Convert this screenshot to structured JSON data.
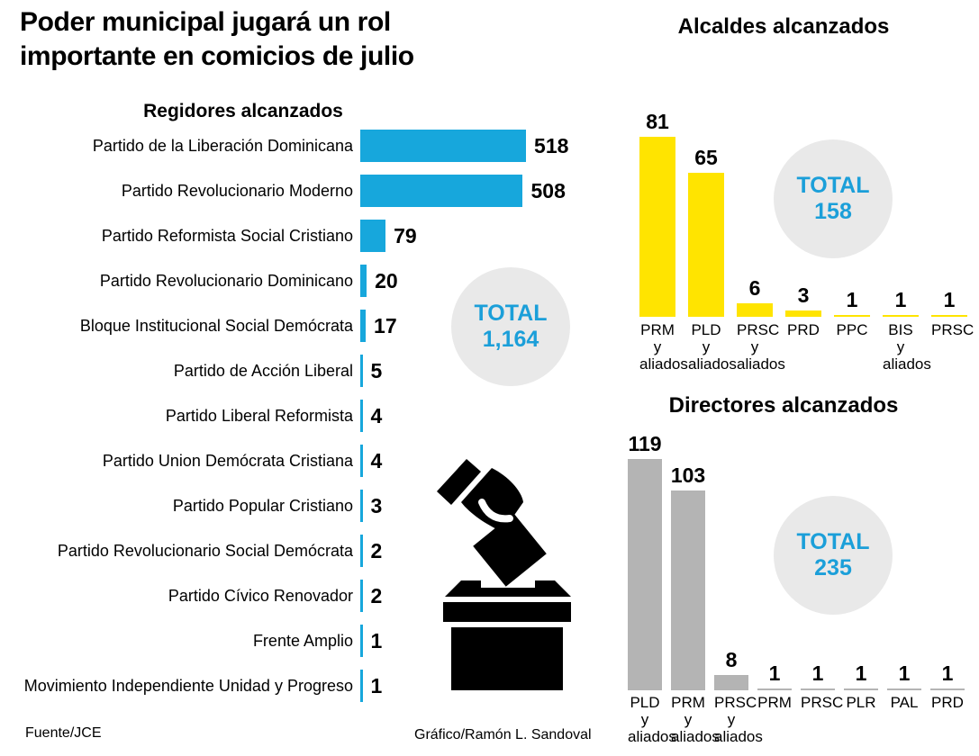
{
  "meta": {
    "title": "Poder municipal jugará un rol\nimportante en comicios de julio",
    "source": "Fuente/JCE",
    "credit": "Gráfico/Ramón L. Sandoval"
  },
  "colors": {
    "cyan_bar": "#17A7DC",
    "cyan_text": "#1B9FD9",
    "yellow_bar": "#FFE400",
    "gray_bar": "#B4B4B4",
    "circle_bg": "#E9E9E9",
    "text": "#000000",
    "background": "#FFFFFF"
  },
  "icons": {
    "ballot_box": "ballot-box-icon"
  },
  "chart_data": [
    {
      "id": "regidores",
      "type": "bar",
      "orientation": "horizontal",
      "title": "Regidores alcanzados",
      "bar_color": "#17A7DC",
      "grid": false,
      "legend": "none",
      "value_labels": "end-of-bar",
      "xlim": [
        0,
        560
      ],
      "total_label": "TOTAL",
      "total_value": "1,164",
      "categories": [
        "Partido de la Liberación Dominicana",
        "Partido Revolucionario Moderno",
        "Partido Reformista Social Cristiano",
        "Partido Revolucionario Dominicano",
        "Bloque Institucional Social Demócrata",
        "Partido de Acción Liberal",
        "Partido Liberal Reformista",
        "Partido Union Demócrata Cristiana",
        "Partido Popular Cristiano",
        "Partido Revolucionario Social Demócrata",
        "Partido Cívico Renovador",
        "Frente Amplio",
        "Movimiento Independiente Unidad y Progreso"
      ],
      "values": [
        518,
        508,
        79,
        20,
        17,
        5,
        4,
        4,
        3,
        2,
        2,
        1,
        1
      ],
      "value_labels_text": [
        "518",
        "508",
        "79",
        "20",
        "17",
        "5",
        "4",
        "4",
        "3",
        "2",
        "2",
        "1",
        "1"
      ]
    },
    {
      "id": "alcaldes",
      "type": "bar",
      "orientation": "vertical",
      "title": "Alcaldes alcanzados",
      "bar_color": "#FFE400",
      "grid": false,
      "legend": "none",
      "value_labels": "above-bar",
      "ylim": [
        0,
        85
      ],
      "total_label": "TOTAL",
      "total_value": "158",
      "categories": [
        [
          "PRM",
          "y",
          "aliados"
        ],
        [
          "PLD",
          "y",
          "aliados"
        ],
        [
          "PRSC",
          "y",
          "aliados"
        ],
        [
          "PRD"
        ],
        [
          "PPC"
        ],
        [
          "BIS",
          "y",
          "aliados"
        ],
        [
          "PRSC"
        ]
      ],
      "values": [
        81,
        65,
        6,
        3,
        1,
        1,
        1
      ],
      "value_labels_text": [
        "81",
        "65",
        "6",
        "3",
        "1",
        "1",
        "1"
      ]
    },
    {
      "id": "directores",
      "type": "bar",
      "orientation": "vertical",
      "title": "Directores alcanzados",
      "bar_color": "#B4B4B4",
      "grid": false,
      "legend": "none",
      "value_labels": "above-bar",
      "ylim": [
        0,
        120
      ],
      "total_label": "TOTAL",
      "total_value": "235",
      "categories": [
        [
          "PLD",
          "y",
          "aliados"
        ],
        [
          "PRM",
          "y",
          "aliados"
        ],
        [
          "PRSC",
          "y",
          "aliados"
        ],
        [
          "PRM"
        ],
        [
          "PRSC"
        ],
        [
          "PLR"
        ],
        [
          "PAL"
        ],
        [
          "PRD"
        ]
      ],
      "values": [
        119,
        103,
        8,
        1,
        1,
        1,
        1,
        1
      ],
      "value_labels_text": [
        "119",
        "103",
        "8",
        "1",
        "1",
        "1",
        "1",
        "1"
      ]
    }
  ]
}
